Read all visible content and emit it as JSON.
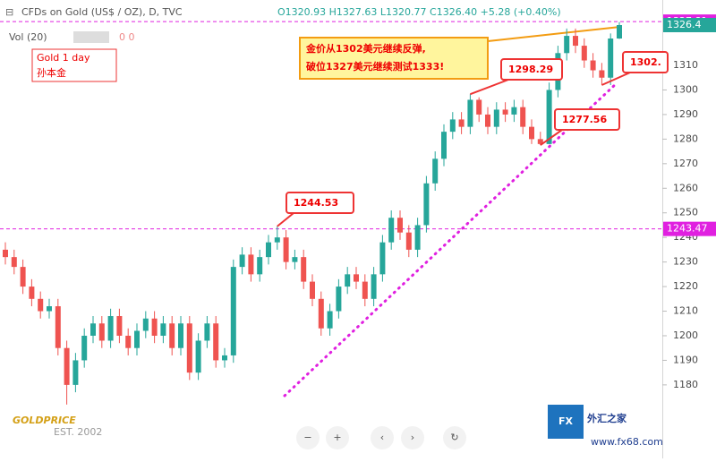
{
  "chart_data": {
    "type": "candlestick",
    "header": {
      "symbol": "CFDs on Gold (US$ / OZ), D, TVC",
      "ohlc": "O1320.93 H1327.63 L1320.77 C1326.40 +5.28 (+0.40%)",
      "volume": "Vol (20)",
      "volume_values": "0 0"
    },
    "note": [
      "Gold 1 day",
      "孙本金"
    ],
    "comment": [
      "金价从1302美元继续反弹,",
      "破位1327美元继续测试1333!"
    ],
    "annotations": [
      "1244.53",
      "1298.29",
      "1277.56",
      "1302."
    ],
    "logo": "GOLDPRICE",
    "logo_sub": "EST. 2002",
    "brand": "外汇之家",
    "brand_url": "www.fx68.com",
    "up_color": "#26a69a",
    "down_color": "#ef5350",
    "ylim": [
      1158.1,
      1336.6
    ],
    "yticks": [
      1180,
      1190,
      1200,
      1210,
      1220,
      1230,
      1240,
      1250,
      1260,
      1270,
      1280,
      1290,
      1300,
      1310
    ],
    "price_lines": [
      {
        "value": 1327.81,
        "color": "#e020e0"
      },
      {
        "value": 1243.47,
        "color": "#e020e0"
      }
    ],
    "last_price": 1326.4,
    "open": [
      1235,
      1232,
      1228,
      1220,
      1215,
      1210,
      1212,
      1195,
      1180,
      1190,
      1200,
      1205,
      1198,
      1208,
      1200,
      1195,
      1202,
      1207,
      1200,
      1205,
      1195,
      1205,
      1185,
      1198,
      1205,
      1190,
      1192,
      1228,
      1233,
      1225,
      1232,
      1238,
      1240,
      1230,
      1232,
      1222,
      1215,
      1203,
      1210,
      1220,
      1225,
      1222,
      1215,
      1225,
      1238,
      1248,
      1242,
      1235,
      1245,
      1262,
      1272,
      1283,
      1288,
      1285,
      1296,
      1290,
      1285,
      1292,
      1290,
      1293,
      1285,
      1280,
      1278,
      1300,
      1315,
      1322,
      1318,
      1312,
      1308,
      1305,
      1320.93
    ],
    "high": [
      1238,
      1235,
      1231,
      1223,
      1218,
      1215,
      1215,
      1198,
      1193,
      1203,
      1208,
      1208,
      1211,
      1211,
      1203,
      1205,
      1210,
      1210,
      1208,
      1208,
      1208,
      1208,
      1201,
      1208,
      1208,
      1195,
      1231,
      1236,
      1236,
      1235,
      1241,
      1244.53,
      1243,
      1235,
      1235,
      1225,
      1218,
      1213,
      1223,
      1228,
      1228,
      1225,
      1228,
      1241,
      1251,
      1251,
      1245,
      1248,
      1265,
      1275,
      1286,
      1291,
      1291,
      1298.29,
      1297,
      1293,
      1295,
      1295,
      1296,
      1296,
      1288,
      1283,
      1303,
      1318,
      1325,
      1325,
      1321,
      1315,
      1311,
      1323,
      1327.63
    ],
    "low": [
      1229,
      1225,
      1217,
      1212,
      1207,
      1207,
      1192,
      1172,
      1177,
      1187,
      1197,
      1195,
      1195,
      1197,
      1192,
      1192,
      1199,
      1197,
      1197,
      1192,
      1192,
      1182,
      1182,
      1195,
      1187,
      1187,
      1189,
      1225,
      1222,
      1222,
      1229,
      1235,
      1227,
      1227,
      1219,
      1212,
      1200,
      1200,
      1207,
      1217,
      1219,
      1212,
      1212,
      1222,
      1235,
      1239,
      1232,
      1232,
      1242,
      1259,
      1269,
      1280,
      1282,
      1282,
      1287,
      1282,
      1282,
      1287,
      1287,
      1282,
      1278,
      1277.56,
      1278,
      1297,
      1312,
      1315,
      1309,
      1305,
      1302,
      1302,
      1320.77
    ],
    "close": [
      1232,
      1228,
      1220,
      1215,
      1210,
      1212,
      1195,
      1180,
      1190,
      1200,
      1205,
      1198,
      1208,
      1200,
      1195,
      1202,
      1207,
      1200,
      1205,
      1195,
      1205,
      1185,
      1198,
      1205,
      1190,
      1192,
      1228,
      1233,
      1225,
      1232,
      1238,
      1240,
      1230,
      1232,
      1222,
      1215,
      1203,
      1210,
      1220,
      1225,
      1222,
      1215,
      1225,
      1238,
      1248,
      1242,
      1235,
      1245,
      1262,
      1272,
      1283,
      1288,
      1285,
      1296,
      1290,
      1285,
      1292,
      1290,
      1293,
      1285,
      1280,
      1278,
      1300,
      1315,
      1322,
      1318,
      1312,
      1308,
      1305,
      1320.93,
      1326.4
    ]
  }
}
